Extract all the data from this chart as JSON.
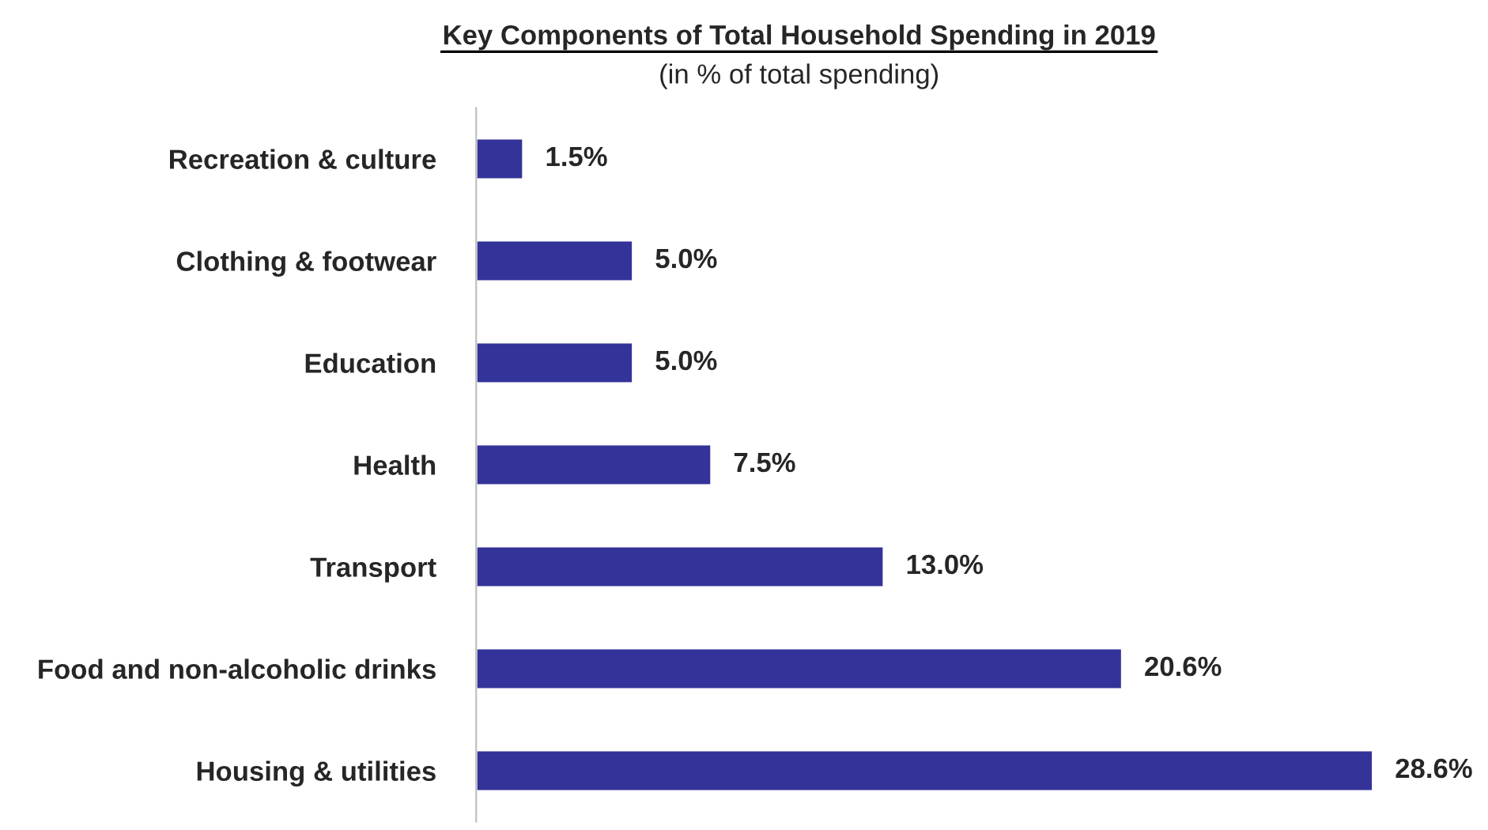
{
  "chart_data": {
    "type": "bar",
    "orientation": "horizontal",
    "title": "Key Components of Total Household Spending in 2019",
    "subtitle": "(in % of total spending)",
    "categories": [
      "Recreation & culture",
      "Clothing & footwear",
      "Education",
      "Health",
      "Transport",
      "Food and non-alcoholic drinks",
      "Housing & utilities"
    ],
    "values": [
      1.5,
      5.0,
      5.0,
      7.5,
      13.0,
      20.6,
      28.6
    ],
    "value_labels": [
      "1.5%",
      "5.0%",
      "5.0%",
      "7.5%",
      "13.0%",
      "20.6%",
      "28.6%"
    ],
    "color": "#333399"
  }
}
